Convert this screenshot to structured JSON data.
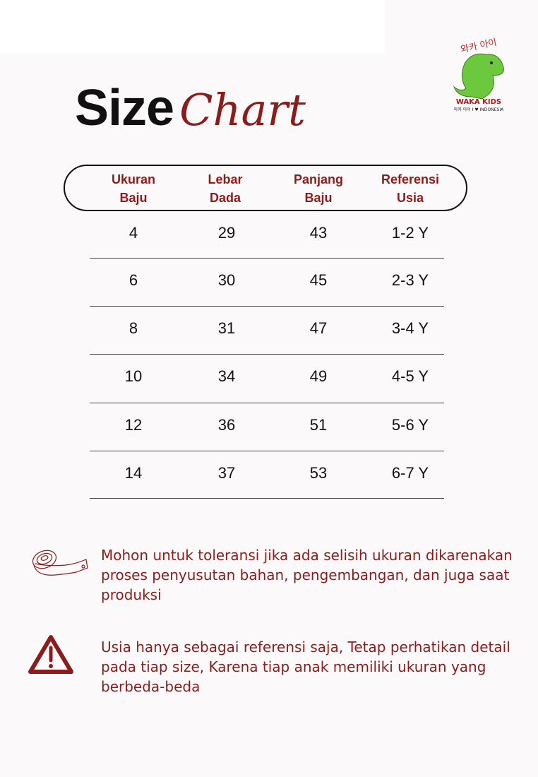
{
  "title": {
    "word1": "Size",
    "word2": "Chart"
  },
  "logo": {
    "korean": "와카 아이",
    "brand": "WAKA KIDS",
    "tagline": "I ♥ INDONESIA"
  },
  "table": {
    "headers": [
      [
        "Ukuran",
        "Baju"
      ],
      [
        "Lebar",
        "Dada"
      ],
      [
        "Panjang",
        "Baju"
      ],
      [
        "Referensi",
        "Usia"
      ]
    ],
    "rows": [
      [
        "4",
        "29",
        "43",
        "1-2 Y"
      ],
      [
        "6",
        "30",
        "45",
        "2-3 Y"
      ],
      [
        "8",
        "31",
        "47",
        "3-4 Y"
      ],
      [
        "10",
        "34",
        "49",
        "4-5 Y"
      ],
      [
        "12",
        "36",
        "51",
        "5-6 Y"
      ],
      [
        "14",
        "37",
        "53",
        "6-7 Y"
      ]
    ]
  },
  "notes": [
    {
      "icon": "measuring-tape-icon",
      "lines": [
        "Mohon untuk toleransi jika ada selisih ukuran dikarenakan",
        "proses penyusutan bahan, pengembangan, dan juga saat",
        "produksi"
      ]
    },
    {
      "icon": "warning-icon",
      "lines": [
        "Usia hanya sebagai referensi saja, Tetap perhatikan detail",
        "pada tiap size, Karena tiap anak memiliki ukuran yang",
        "berbeda-beda"
      ]
    }
  ],
  "colors": {
    "accent": "#8a1c1c",
    "logo_green": "#6cc83c"
  }
}
